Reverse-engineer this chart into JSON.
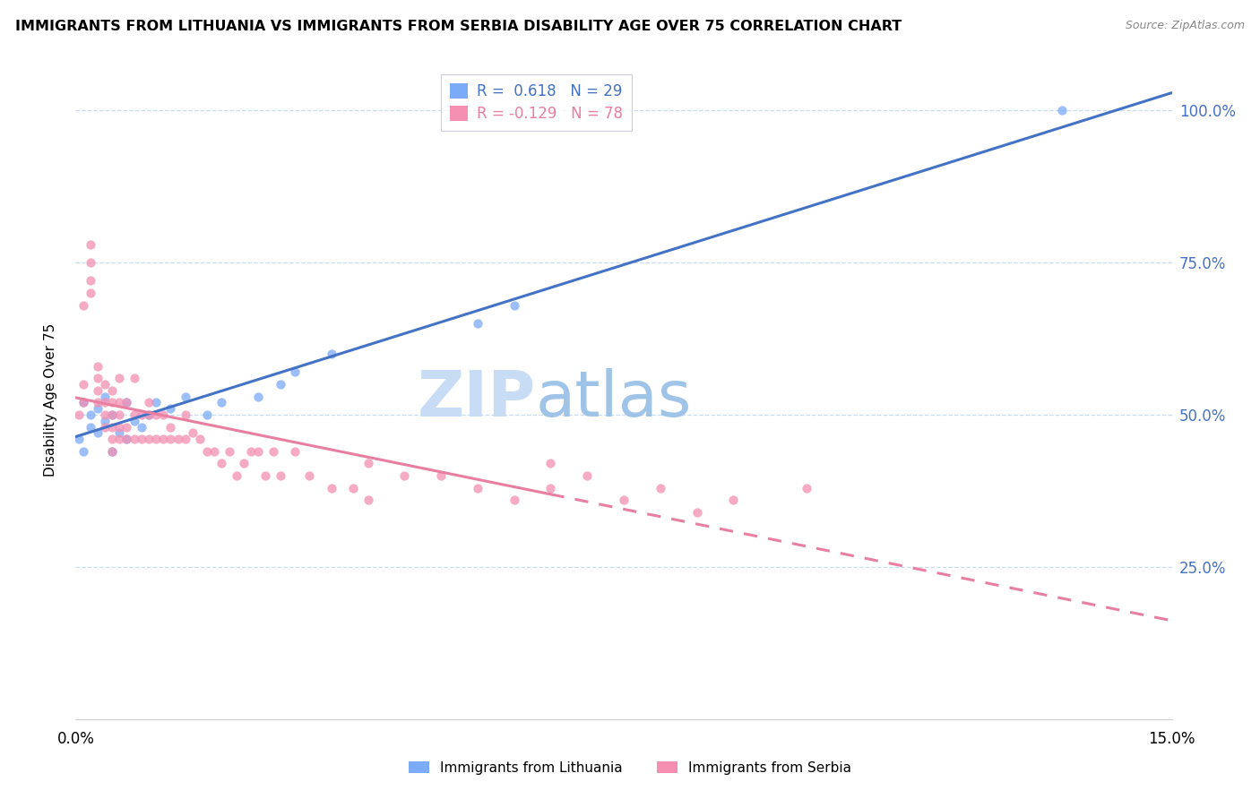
{
  "title": "IMMIGRANTS FROM LITHUANIA VS IMMIGRANTS FROM SERBIA DISABILITY AGE OVER 75 CORRELATION CHART",
  "source": "Source: ZipAtlas.com",
  "ylabel": "Disability Age Over 75",
  "xlim": [
    0.0,
    0.15
  ],
  "ylim": [
    0.0,
    1.05
  ],
  "ytick_vals": [
    0.25,
    0.5,
    0.75,
    1.0
  ],
  "ytick_labels": [
    "25.0%",
    "50.0%",
    "75.0%",
    "100.0%"
  ],
  "xtick_vals": [
    0.0,
    0.15
  ],
  "xtick_labels": [
    "0.0%",
    "15.0%"
  ],
  "blue_color": "#7baaf7",
  "pink_color": "#f48fb1",
  "blue_line_color": "#4472c4",
  "pink_line_color": "#e87fa0",
  "legend_label1": "R =  0.618   N = 29",
  "legend_label2": "R = -0.129   N = 78",
  "legend_text_color": "#4472c4",
  "legend_text_color2": "#e87fa0",
  "watermark_zip": "ZIP",
  "watermark_atlas": "atlas",
  "bottom_label1": "Immigrants from Lithuania",
  "bottom_label2": "Immigrants from Serbia",
  "lithuania_x": [
    0.0005,
    0.001,
    0.001,
    0.002,
    0.002,
    0.003,
    0.003,
    0.004,
    0.004,
    0.005,
    0.005,
    0.006,
    0.007,
    0.007,
    0.008,
    0.009,
    0.01,
    0.011,
    0.013,
    0.015,
    0.018,
    0.02,
    0.025,
    0.028,
    0.03,
    0.035,
    0.055,
    0.06,
    0.135
  ],
  "lithuania_y": [
    0.46,
    0.44,
    0.52,
    0.48,
    0.5,
    0.47,
    0.51,
    0.49,
    0.53,
    0.44,
    0.5,
    0.47,
    0.46,
    0.52,
    0.49,
    0.48,
    0.5,
    0.52,
    0.51,
    0.53,
    0.5,
    0.52,
    0.53,
    0.55,
    0.57,
    0.6,
    0.65,
    0.68,
    1.0
  ],
  "serbia_x": [
    0.0005,
    0.001,
    0.001,
    0.001,
    0.002,
    0.002,
    0.002,
    0.002,
    0.003,
    0.003,
    0.003,
    0.003,
    0.004,
    0.004,
    0.004,
    0.004,
    0.005,
    0.005,
    0.005,
    0.005,
    0.005,
    0.005,
    0.006,
    0.006,
    0.006,
    0.006,
    0.006,
    0.007,
    0.007,
    0.007,
    0.008,
    0.008,
    0.008,
    0.009,
    0.009,
    0.01,
    0.01,
    0.01,
    0.011,
    0.011,
    0.012,
    0.012,
    0.013,
    0.013,
    0.014,
    0.015,
    0.015,
    0.016,
    0.017,
    0.018,
    0.019,
    0.02,
    0.021,
    0.022,
    0.023,
    0.024,
    0.025,
    0.026,
    0.027,
    0.028,
    0.03,
    0.032,
    0.035,
    0.038,
    0.04,
    0.045,
    0.05,
    0.055,
    0.06,
    0.065,
    0.07,
    0.075,
    0.08,
    0.085,
    0.09,
    0.1,
    0.065,
    0.04
  ],
  "serbia_y": [
    0.5,
    0.52,
    0.55,
    0.68,
    0.7,
    0.72,
    0.75,
    0.78,
    0.52,
    0.54,
    0.56,
    0.58,
    0.48,
    0.5,
    0.52,
    0.55,
    0.44,
    0.46,
    0.48,
    0.5,
    0.52,
    0.54,
    0.46,
    0.48,
    0.5,
    0.52,
    0.56,
    0.46,
    0.48,
    0.52,
    0.46,
    0.5,
    0.56,
    0.46,
    0.5,
    0.46,
    0.5,
    0.52,
    0.46,
    0.5,
    0.46,
    0.5,
    0.46,
    0.48,
    0.46,
    0.46,
    0.5,
    0.47,
    0.46,
    0.44,
    0.44,
    0.42,
    0.44,
    0.4,
    0.42,
    0.44,
    0.44,
    0.4,
    0.44,
    0.4,
    0.44,
    0.4,
    0.38,
    0.38,
    0.42,
    0.4,
    0.4,
    0.38,
    0.36,
    0.38,
    0.4,
    0.36,
    0.38,
    0.34,
    0.36,
    0.38,
    0.42,
    0.36
  ]
}
